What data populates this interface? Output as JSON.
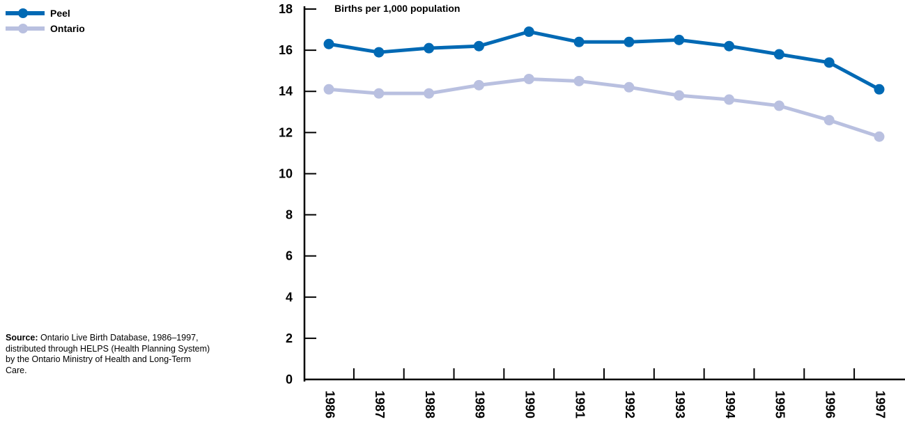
{
  "legend": {
    "items": [
      {
        "label": "Peel",
        "color": "#0069b4"
      },
      {
        "label": "Ontario",
        "color": "#b9c0e0"
      }
    ]
  },
  "source": {
    "label": "Source:",
    "text": "Ontario Live Birth Database, 1986–1997, distributed through HELPS (Health Planning System) by the Ontario Ministry of Health and Long-Term Care."
  },
  "chart_data": {
    "type": "line",
    "ylabel": "Births per 1,000 population",
    "ylim": [
      0,
      18
    ],
    "yticks": [
      0,
      2,
      4,
      6,
      8,
      10,
      12,
      14,
      16,
      18
    ],
    "categories": [
      "1986",
      "1987",
      "1988",
      "1989",
      "1990",
      "1991",
      "1992",
      "1993",
      "1994",
      "1995",
      "1996",
      "1997"
    ],
    "grid": false,
    "legend_position": "top-left",
    "series": [
      {
        "name": "Peel",
        "color": "#0069b4",
        "values": [
          16.3,
          15.9,
          16.1,
          16.2,
          16.9,
          16.4,
          16.4,
          16.5,
          16.2,
          15.8,
          15.4,
          14.1
        ]
      },
      {
        "name": "Ontario",
        "color": "#b9c0e0",
        "values": [
          14.1,
          13.9,
          13.9,
          14.3,
          14.6,
          14.5,
          14.2,
          13.8,
          13.6,
          13.3,
          12.6,
          11.8
        ]
      }
    ]
  }
}
